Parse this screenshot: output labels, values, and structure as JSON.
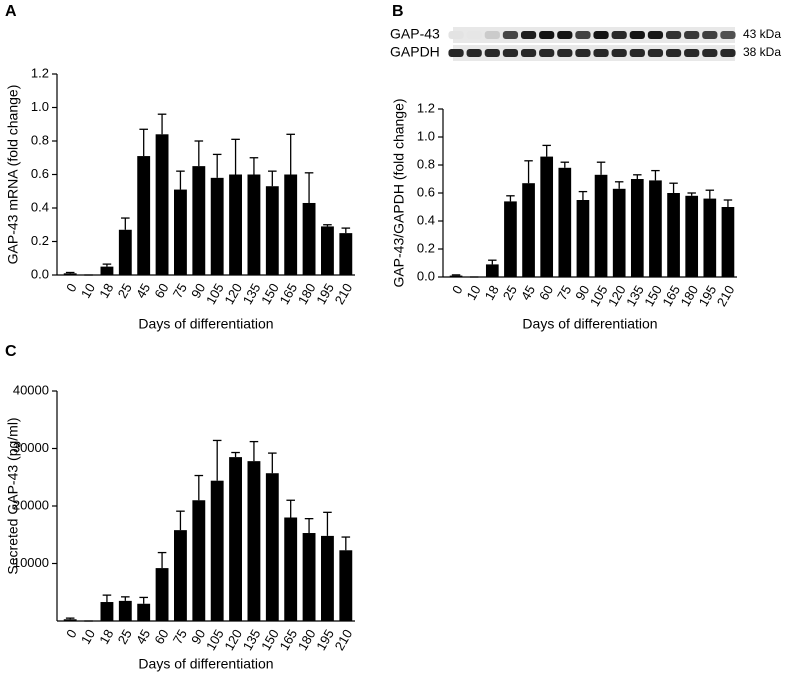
{
  "chart_data": [
    {
      "type": "bar",
      "panel": "A",
      "xlabel": "Days of differentiation",
      "ylabel": "GAP-43 mRNA (fold change)",
      "categories": [
        "0",
        "10",
        "18",
        "25",
        "45",
        "60",
        "75",
        "90",
        "105",
        "120",
        "135",
        "150",
        "165",
        "180",
        "195",
        "210"
      ],
      "values": [
        0.01,
        0.0,
        0.05,
        0.27,
        0.71,
        0.84,
        0.51,
        0.65,
        0.58,
        0.6,
        0.6,
        0.53,
        0.6,
        0.43,
        0.29,
        0.25
      ],
      "errors": [
        0.005,
        0,
        0.015,
        0.07,
        0.16,
        0.12,
        0.11,
        0.15,
        0.14,
        0.21,
        0.1,
        0.09,
        0.24,
        0.18,
        0.01,
        0.03
      ],
      "color": "#000000",
      "ylim": [
        0,
        1.2
      ],
      "yticks": [
        {
          "value": 0,
          "label": "0.0"
        },
        0.2,
        0.4,
        0.6,
        0.8,
        {
          "value": 1,
          "label": "1.0"
        },
        1.2
      ]
    },
    {
      "type": "bar",
      "panel": "B",
      "xlabel": "Days of differentiation",
      "ylabel": "GAP-43/GAPDH (fold change)",
      "blot": [
        {
          "label": "GAP-43",
          "size": "43 kDa"
        },
        {
          "label": "GAPDH",
          "size": "38 kDa"
        }
      ],
      "categories": [
        "0",
        "10",
        "18",
        "25",
        "45",
        "60",
        "75",
        "90",
        "105",
        "120",
        "135",
        "150",
        "165",
        "180",
        "195",
        "210"
      ],
      "values": [
        0.01,
        0.0,
        0.09,
        0.54,
        0.67,
        0.86,
        0.78,
        0.55,
        0.73,
        0.63,
        0.7,
        0.69,
        0.6,
        0.58,
        0.56,
        0.5
      ],
      "errors": [
        0.005,
        0,
        0.03,
        0.04,
        0.16,
        0.08,
        0.04,
        0.06,
        0.09,
        0.05,
        0.03,
        0.07,
        0.07,
        0.02,
        0.06,
        0.05
      ],
      "color": "#000000",
      "ylim": [
        0,
        1.2
      ],
      "yticks": [
        {
          "value": 0,
          "label": "0.0"
        },
        0.2,
        0.4,
        0.6,
        0.8,
        {
          "value": 1,
          "label": "1.0"
        },
        1.2
      ]
    },
    {
      "type": "bar",
      "panel": "C",
      "xlabel": "Days of differentiation",
      "ylabel": "Secreted GAP-43 (pg/ml)",
      "categories": [
        "0",
        "10",
        "18",
        "25",
        "45",
        "60",
        "75",
        "90",
        "105",
        "120",
        "135",
        "150",
        "165",
        "180",
        "195",
        "210"
      ],
      "values": [
        300,
        0,
        3300,
        3500,
        3000,
        9200,
        15800,
        21000,
        24400,
        28500,
        27800,
        25700,
        18000,
        15300,
        14800,
        12300
      ],
      "errors": [
        200,
        0,
        1200,
        700,
        1100,
        2700,
        3300,
        4300,
        7000,
        800,
        3400,
        3500,
        3000,
        2500,
        4100,
        2300
      ],
      "color": "#000000",
      "ylim": [
        0,
        40000
      ],
      "yticks": [
        10000,
        20000,
        30000,
        40000
      ]
    }
  ]
}
